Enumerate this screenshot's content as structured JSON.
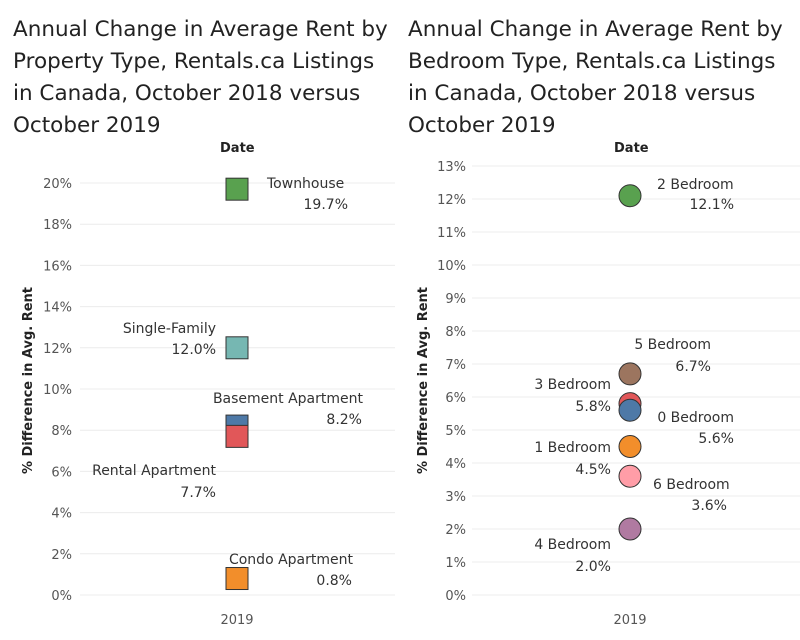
{
  "chart_data": [
    {
      "type": "scatter",
      "title": "Annual Change in Average Rent by Property Type, Rentals.ca Listings in Canada, October 2018 versus October 2019",
      "column_header": "Date",
      "ylabel": "% Difference in Avg. Rent",
      "categories": [
        "2019"
      ],
      "ylim": [
        0,
        20
      ],
      "yticks": [
        0,
        2,
        4,
        6,
        8,
        10,
        12,
        14,
        16,
        18,
        20
      ],
      "ytick_labels": [
        "0%",
        "2%",
        "4%",
        "6%",
        "8%",
        "10%",
        "12%",
        "14%",
        "16%",
        "18%",
        "20%"
      ],
      "marker": "square",
      "grid": true,
      "series": [
        {
          "name": "Townhouse",
          "value": 19.7,
          "label": "19.7%",
          "color": "#59a14f"
        },
        {
          "name": "Single-Family",
          "value": 12.0,
          "label": "12.0%",
          "color": "#76b7b2"
        },
        {
          "name": "Basement Apartment",
          "value": 8.2,
          "label": "8.2%",
          "color": "#4e79a7"
        },
        {
          "name": "Rental Apartment",
          "value": 7.7,
          "label": "7.7%",
          "color": "#e15759"
        },
        {
          "name": "Condo Apartment",
          "value": 0.8,
          "label": "0.8%",
          "color": "#f28e2b"
        }
      ]
    },
    {
      "type": "scatter",
      "title": "Annual Change in Average Rent by Bedroom Type, Rentals.ca Listings in Canada, October 2018 versus October 2019",
      "column_header": "Date",
      "ylabel": "% Difference in Avg. Rent",
      "categories": [
        "2019"
      ],
      "ylim": [
        0,
        13
      ],
      "yticks": [
        0,
        1,
        2,
        3,
        4,
        5,
        6,
        7,
        8,
        9,
        10,
        11,
        12,
        13
      ],
      "ytick_labels": [
        "0%",
        "1%",
        "2%",
        "3%",
        "4%",
        "5%",
        "6%",
        "7%",
        "8%",
        "9%",
        "10%",
        "11%",
        "12%",
        "13%"
      ],
      "marker": "circle",
      "grid": true,
      "series": [
        {
          "name": "2 Bedroom",
          "value": 12.1,
          "label": "12.1%",
          "color": "#59a14f"
        },
        {
          "name": "5 Bedroom",
          "value": 6.7,
          "label": "6.7%",
          "color": "#9c755f"
        },
        {
          "name": "3 Bedroom",
          "value": 5.8,
          "label": "5.8%",
          "color": "#e15759"
        },
        {
          "name": "0 Bedroom",
          "value": 5.6,
          "label": "5.6%",
          "color": "#4e79a7"
        },
        {
          "name": "1 Bedroom",
          "value": 4.5,
          "label": "4.5%",
          "color": "#f28e2b"
        },
        {
          "name": "6 Bedroom",
          "value": 3.6,
          "label": "3.6%",
          "color": "#ff9da7"
        },
        {
          "name": "4 Bedroom",
          "value": 2.0,
          "label": "2.0%",
          "color": "#b07aa1"
        }
      ]
    }
  ]
}
